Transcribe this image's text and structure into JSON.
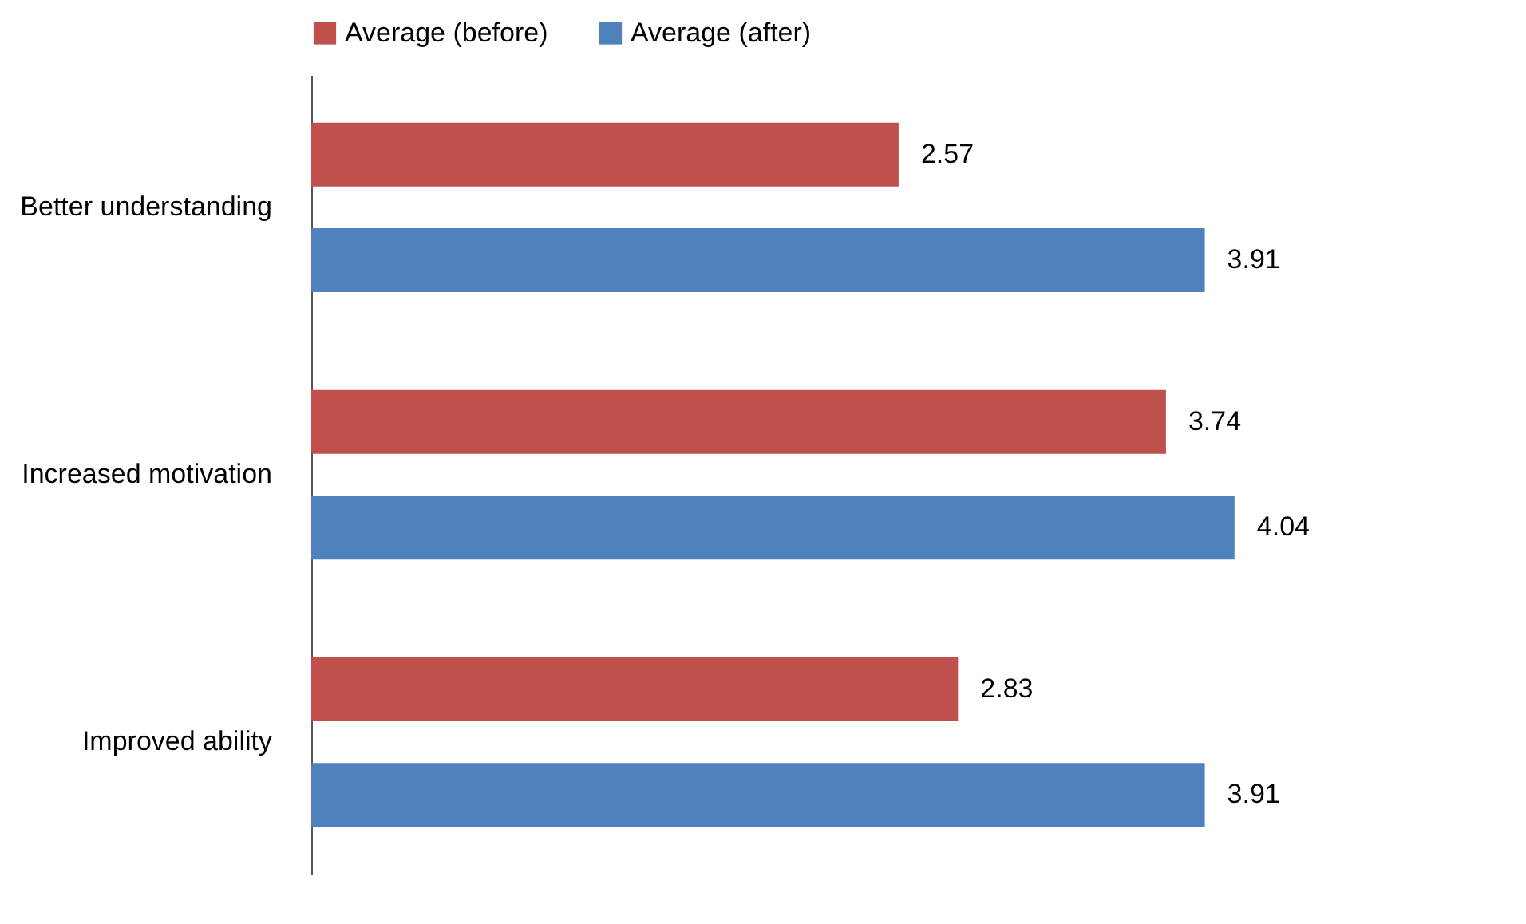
{
  "chart_data": {
    "type": "bar",
    "orientation": "horizontal",
    "categories": [
      "Better understanding",
      "Increased motivation",
      "Improved ability"
    ],
    "series": [
      {
        "name": "Average (before)",
        "color": "#c0504d",
        "values": [
          2.57,
          3.74,
          2.83
        ]
      },
      {
        "name": "Average (after)",
        "color": "#4f81bd",
        "values": [
          3.91,
          4.04,
          3.91
        ]
      }
    ],
    "data_labels": true,
    "legend": "top",
    "grid": false
  }
}
